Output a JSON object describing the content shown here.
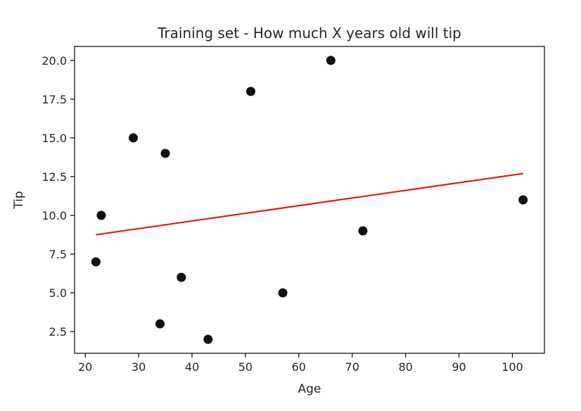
{
  "chart_data": {
    "type": "scatter",
    "title": "Training set - How much X years old will tip",
    "xlabel": "Age",
    "ylabel": "Tip",
    "xlim": [
      18.0,
      106.0
    ],
    "ylim": [
      1.1,
      20.9
    ],
    "xticks": [
      20,
      30,
      40,
      50,
      60,
      70,
      80,
      90,
      100
    ],
    "xtick_labels": [
      "20",
      "30",
      "40",
      "50",
      "60",
      "70",
      "80",
      "90",
      "100"
    ],
    "yticks": [
      2.5,
      5.0,
      7.5,
      10.0,
      12.5,
      15.0,
      17.5,
      20.0
    ],
    "ytick_labels": [
      "2.5",
      "5.0",
      "7.5",
      "10.0",
      "12.5",
      "15.0",
      "17.5",
      "20.0"
    ],
    "grid": false,
    "series": [
      {
        "type": "scatter",
        "color": "#111111",
        "points": [
          {
            "x": 22,
            "y": 7
          },
          {
            "x": 23,
            "y": 10
          },
          {
            "x": 29,
            "y": 15
          },
          {
            "x": 34,
            "y": 3
          },
          {
            "x": 35,
            "y": 14
          },
          {
            "x": 38,
            "y": 6
          },
          {
            "x": 43,
            "y": 2
          },
          {
            "x": 51,
            "y": 18
          },
          {
            "x": 57,
            "y": 5
          },
          {
            "x": 66,
            "y": 20
          },
          {
            "x": 72,
            "y": 9
          },
          {
            "x": 102,
            "y": 11
          }
        ]
      },
      {
        "type": "line",
        "color": "#e31a1c",
        "points": [
          {
            "x": 22,
            "y": 8.75
          },
          {
            "x": 102,
            "y": 12.7
          }
        ]
      }
    ]
  }
}
